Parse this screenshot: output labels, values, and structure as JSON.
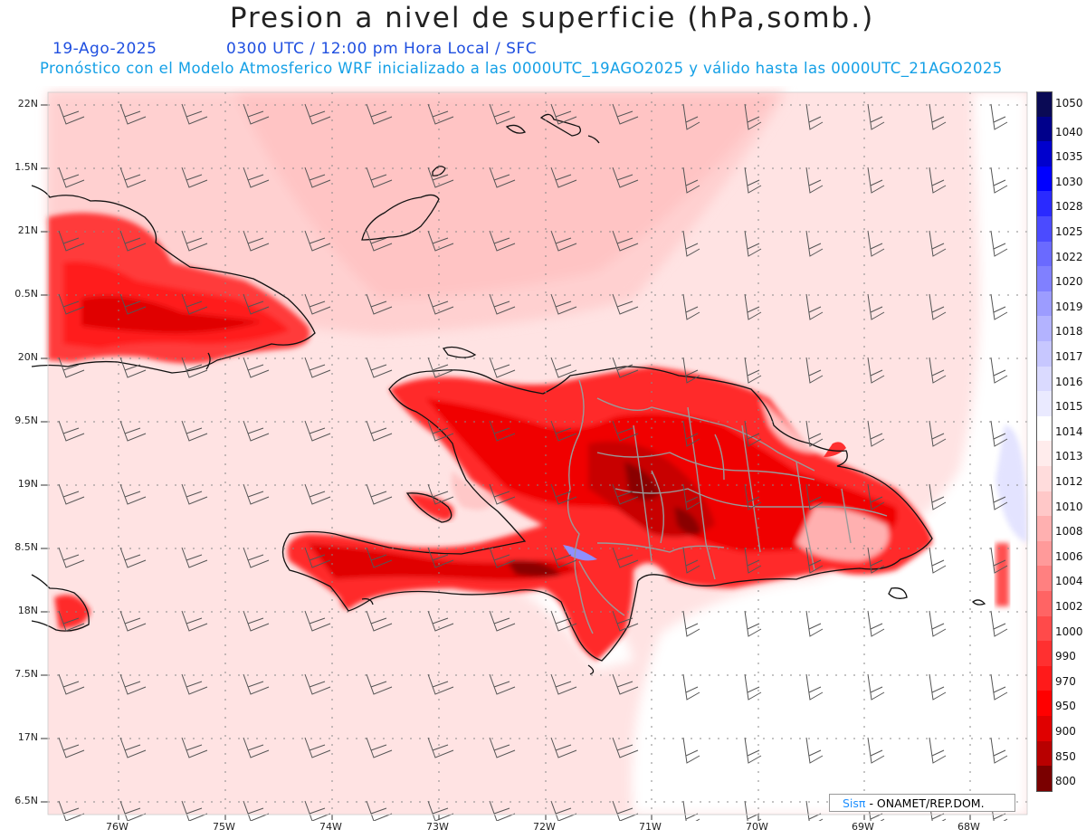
{
  "title": "Presion a nivel de superficie (hPa,somb.)",
  "date": "19-Ago-2025",
  "time_info": "0300 UTC / 12:00 pm Hora Local / SFC",
  "forecast_info": "Pronóstico con el Modelo Atmosferico WRF inicializado a las 0000UTC_19AGO2025 y válido hasta las  0000UTC_21AGO2025",
  "lat_labels": [
    "22N",
    "1.5N",
    "21N",
    "0.5N",
    "20N",
    "9.5N",
    "19N",
    "8.5N",
    "18N",
    "7.5N",
    "17N",
    "6.5N"
  ],
  "lon_labels": [
    "76W",
    "75W",
    "74W",
    "73W",
    "72W",
    "71W",
    "70W",
    "69W",
    "68W"
  ],
  "colorbar": [
    {
      "label": "1050",
      "color": "#0a0a55"
    },
    {
      "label": "1040",
      "color": "#00008b"
    },
    {
      "label": "1035",
      "color": "#0000cd"
    },
    {
      "label": "1030",
      "color": "#0000ff"
    },
    {
      "label": "1028",
      "color": "#2a2aff"
    },
    {
      "label": "1025",
      "color": "#4b4bff"
    },
    {
      "label": "1022",
      "color": "#6a6aff"
    },
    {
      "label": "1020",
      "color": "#8080ff"
    },
    {
      "label": "1019",
      "color": "#9c9cff"
    },
    {
      "label": "1018",
      "color": "#b3b3ff"
    },
    {
      "label": "1017",
      "color": "#c7c7ff"
    },
    {
      "label": "1016",
      "color": "#dadaff"
    },
    {
      "label": "1015",
      "color": "#eaeaff"
    },
    {
      "label": "1014",
      "color": "#ffffff"
    },
    {
      "label": "1013",
      "color": "#ffecec"
    },
    {
      "label": "1012",
      "color": "#ffdcdc"
    },
    {
      "label": "1010",
      "color": "#ffc8c8"
    },
    {
      "label": "1008",
      "color": "#ffb0b0"
    },
    {
      "label": "1006",
      "color": "#ff9a9a"
    },
    {
      "label": "1004",
      "color": "#ff8080"
    },
    {
      "label": "1002",
      "color": "#ff6464"
    },
    {
      "label": "1000",
      "color": "#ff4a4a"
    },
    {
      "label": "990",
      "color": "#ff3030"
    },
    {
      "label": "970",
      "color": "#ff1a1a"
    },
    {
      "label": "950",
      "color": "#ff0000"
    },
    {
      "label": "900",
      "color": "#e00000"
    },
    {
      "label": "850",
      "color": "#b80000"
    },
    {
      "label": "800",
      "color": "#7a0000"
    }
  ],
  "credit": {
    "brand": "Sisπ",
    "text": "- ONAMET/REP.DOM."
  }
}
